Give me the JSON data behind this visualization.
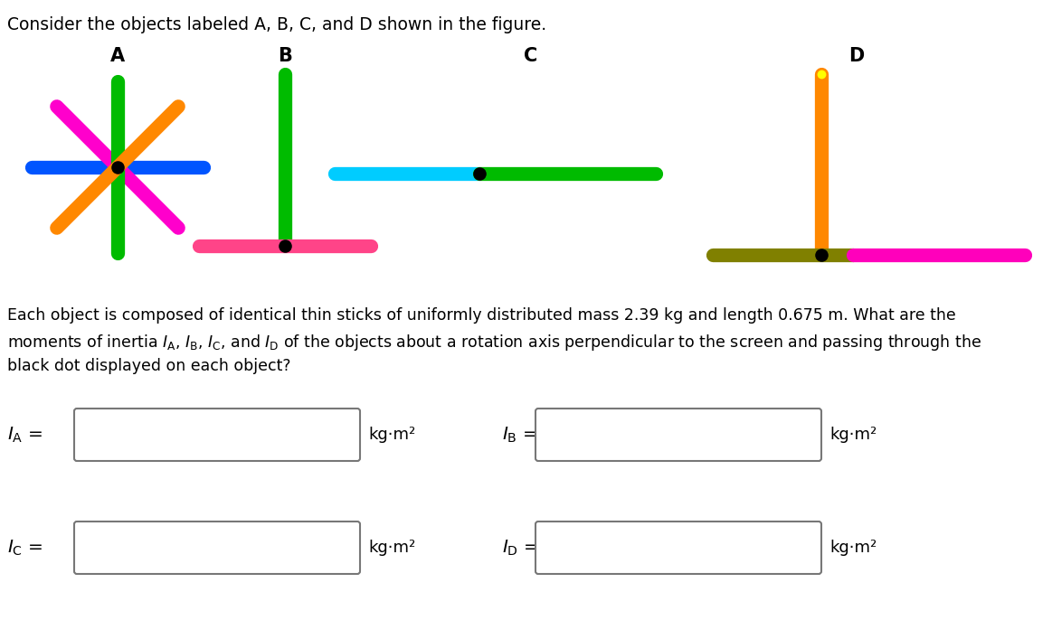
{
  "title_text": "Consider the objects labeled A, B, C, and D shown in the figure.",
  "body_text1": "Each object is composed of identical thin sticks of uniformly distributed mass 2.39 kg and length 0.675 m. What are the",
  "body_text2": "moments of inertia $I_\\mathrm{A}$, $I_\\mathrm{B}$, $I_\\mathrm{C}$, and $I_\\mathrm{D}$ of the objects about a rotation axis perpendicular to the screen and passing through the",
  "body_text3": "black dot displayed on each object?",
  "label_A": "A",
  "label_B": "B",
  "label_C": "C",
  "label_D": "D",
  "bg_color": "#ffffff",
  "lw_stick": 11,
  "colors_A": [
    "#0055ff",
    "#ff00cc",
    "#00bb00",
    "#ff8800"
  ],
  "colors_B": [
    "#00bb00",
    "#ff4488"
  ],
  "colors_C": [
    "#00ccff",
    "#00bb00"
  ],
  "colors_D": [
    "#ff8800",
    "#808000",
    "#ff00bb"
  ],
  "dot_color_top_D": "#ffff00",
  "units_text": "kg·m²"
}
